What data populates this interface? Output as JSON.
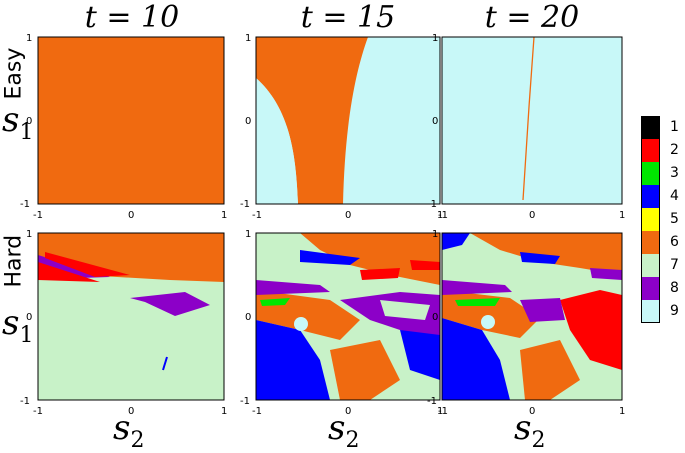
{
  "column_titles": [
    "t = 10",
    "t = 15",
    "t = 20"
  ],
  "row_labels": [
    "Easy",
    "Hard"
  ],
  "y_axis_symbol": "s",
  "y_axis_subscript": "1",
  "x_axis_symbol": "s",
  "x_axis_subscript": "2",
  "tick_labels": {
    "min": "-1",
    "mid": "0",
    "max": "1"
  },
  "colors": {
    "c1": "#000000",
    "c2": "#ff0000",
    "c3": "#00e600",
    "c4": "#0000ff",
    "c5": "#ffff00",
    "c6": "#f06a10",
    "c7": "#c8f2c8",
    "c8": "#8c00c8",
    "c9": "#c8f8f8"
  },
  "legend": [
    {
      "label": "1",
      "color": "#000000"
    },
    {
      "label": "2",
      "color": "#ff0000"
    },
    {
      "label": "3",
      "color": "#00e600"
    },
    {
      "label": "4",
      "color": "#0000ff"
    },
    {
      "label": "5",
      "color": "#ffff00"
    },
    {
      "label": "6",
      "color": "#f06a10"
    },
    {
      "label": "7",
      "color": "#c8f2c8"
    },
    {
      "label": "8",
      "color": "#8c00c8"
    },
    {
      "label": "9",
      "color": "#c8f8f8"
    }
  ]
}
